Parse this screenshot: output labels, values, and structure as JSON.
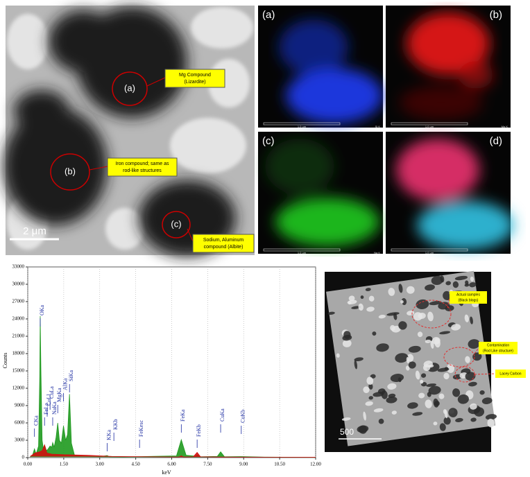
{
  "tem_image": {
    "labels": [
      "(a)",
      "(b)",
      "(c)"
    ],
    "callouts": [
      [
        "Mg Compound",
        "(Lizardite)"
      ],
      [
        "Iron compound; same as",
        "rod-like structures"
      ],
      [
        "Sodium, Aluminum",
        "compound (Albite)"
      ]
    ],
    "scale_bar": "2 μm"
  },
  "eds_maps": [
    {
      "label": "(a)",
      "scale": "1.0 μm",
      "element": "Si K"
    },
    {
      "label": "(b)",
      "scale": "1.0 μm",
      "element": "Mg K"
    },
    {
      "label": "(c)",
      "scale": "1.0 μm",
      "element": "Na K"
    },
    {
      "label": "(d)",
      "scale": "1.0 μm"
    }
  ],
  "chart_data": {
    "type": "line",
    "x_label": "keV",
    "y_label": "Counts",
    "xlim": [
      0,
      12
    ],
    "ylim": [
      0,
      33000
    ],
    "xticks": [
      {
        "value": 0,
        "label": "0.00"
      },
      {
        "value": 1.5,
        "label": "1.50"
      },
      {
        "value": 3,
        "label": "3.00"
      },
      {
        "value": 4.5,
        "label": "4.50"
      },
      {
        "value": 6,
        "label": "6.00"
      },
      {
        "value": 7.5,
        "label": "7.50"
      },
      {
        "value": 9,
        "label": "9.00"
      },
      {
        "value": 10.5,
        "label": "10.50"
      },
      {
        "value": 12,
        "label": "12.00"
      }
    ],
    "yticks": [
      0,
      3000,
      6000,
      9000,
      12000,
      15000,
      18000,
      21000,
      24000,
      27000,
      30000,
      33000
    ],
    "grid": "x",
    "series": [
      {
        "color": "#1f9a1f",
        "x": [
          0.1,
          0.2,
          0.28,
          0.35,
          0.45,
          0.5,
          0.52,
          0.55,
          0.6,
          0.65,
          0.7,
          0.78,
          0.85,
          0.93,
          1.0,
          1.04,
          1.1,
          1.18,
          1.25,
          1.32,
          1.4,
          1.49,
          1.58,
          1.66,
          1.74,
          1.82,
          1.95,
          2.2,
          3.0,
          3.31,
          3.4,
          4.0,
          6.2,
          6.4,
          6.6,
          7.0,
          7.06,
          7.2,
          7.9,
          8.04,
          8.2,
          8.9,
          10,
          12
        ],
        "values": [
          100,
          400,
          1500,
          600,
          2000,
          14000,
          24500,
          15000,
          3000,
          1500,
          2200,
          1200,
          1500,
          2000,
          1800,
          2600,
          1800,
          3500,
          6000,
          3000,
          2500,
          5500,
          3000,
          4000,
          11000,
          2500,
          400,
          250,
          150,
          350,
          150,
          120,
          300,
          3100,
          400,
          250,
          450,
          150,
          200,
          1000,
          150,
          180,
          80,
          40
        ]
      },
      {
        "color": "#d01010",
        "x": [
          0.1,
          0.3,
          0.5,
          0.6,
          0.7,
          0.8,
          1.0,
          1.5,
          2.5,
          3.5,
          6.3,
          6.4,
          6.5,
          6.9,
          7.06,
          7.2,
          8.0,
          12
        ],
        "values": [
          200,
          800,
          1000,
          1200,
          2200,
          800,
          600,
          500,
          400,
          200,
          100,
          300,
          100,
          150,
          900,
          150,
          100,
          50
        ]
      }
    ],
    "peak_labels": [
      {
        "label": "CKa",
        "energy": 0.28
      },
      {
        "label": "OKa",
        "energy": 0.52
      },
      {
        "label": "FeLa",
        "energy": 0.7
      },
      {
        "label": "CuLl",
        "energy": 0.81
      },
      {
        "label": "CuLa",
        "energy": 0.93
      },
      {
        "label": "NaKa",
        "energy": 1.04
      },
      {
        "label": "MgKa",
        "energy": 1.25
      },
      {
        "label": "AlKa",
        "energy": 1.49
      },
      {
        "label": "SiKa",
        "energy": 1.74
      },
      {
        "label": "KKa",
        "energy": 3.31
      },
      {
        "label": "KKb",
        "energy": 3.59
      },
      {
        "label": "FeKesc",
        "energy": 4.66
      },
      {
        "label": "FeKa",
        "energy": 6.4
      },
      {
        "label": "FeKb",
        "energy": 7.06
      },
      {
        "label": "CuKa",
        "energy": 8.04
      },
      {
        "label": "CuKb",
        "energy": 8.9
      }
    ]
  },
  "sample_image": {
    "callouts": [
      [
        "Actual samples",
        "(Black blogs)"
      ],
      [
        "Contamination",
        "(Rod Like structure)"
      ],
      [
        "Lacey Carbon"
      ]
    ],
    "scale_bar": "500"
  }
}
